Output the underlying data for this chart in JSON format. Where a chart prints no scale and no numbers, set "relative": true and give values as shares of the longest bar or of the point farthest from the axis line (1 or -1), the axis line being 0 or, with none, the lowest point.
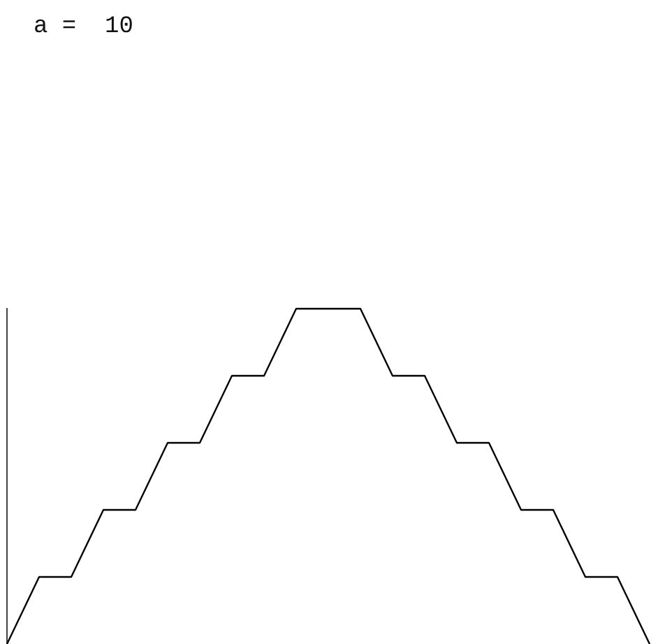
{
  "chart_data": {
    "type": "line",
    "relative": true,
    "annotations": [
      "a =  10"
    ],
    "categories": [
      null,
      null,
      null,
      null,
      null,
      null,
      null,
      null,
      null,
      null,
      null,
      null,
      null,
      null,
      null,
      null,
      null,
      null,
      null,
      null,
      null
    ],
    "series": [
      {
        "color": "#000000",
        "values": [
          0,
          0.2,
          0.2,
          0.4,
          0.4,
          0.6,
          0.6,
          0.8,
          0.8,
          1,
          1,
          1,
          0.8,
          0.8,
          0.6,
          0.6,
          0.4,
          0.4,
          0.2,
          0.2,
          0
        ]
      }
    ],
    "marker": "none",
    "line_style": "solid",
    "grid": false,
    "legend": false
  }
}
